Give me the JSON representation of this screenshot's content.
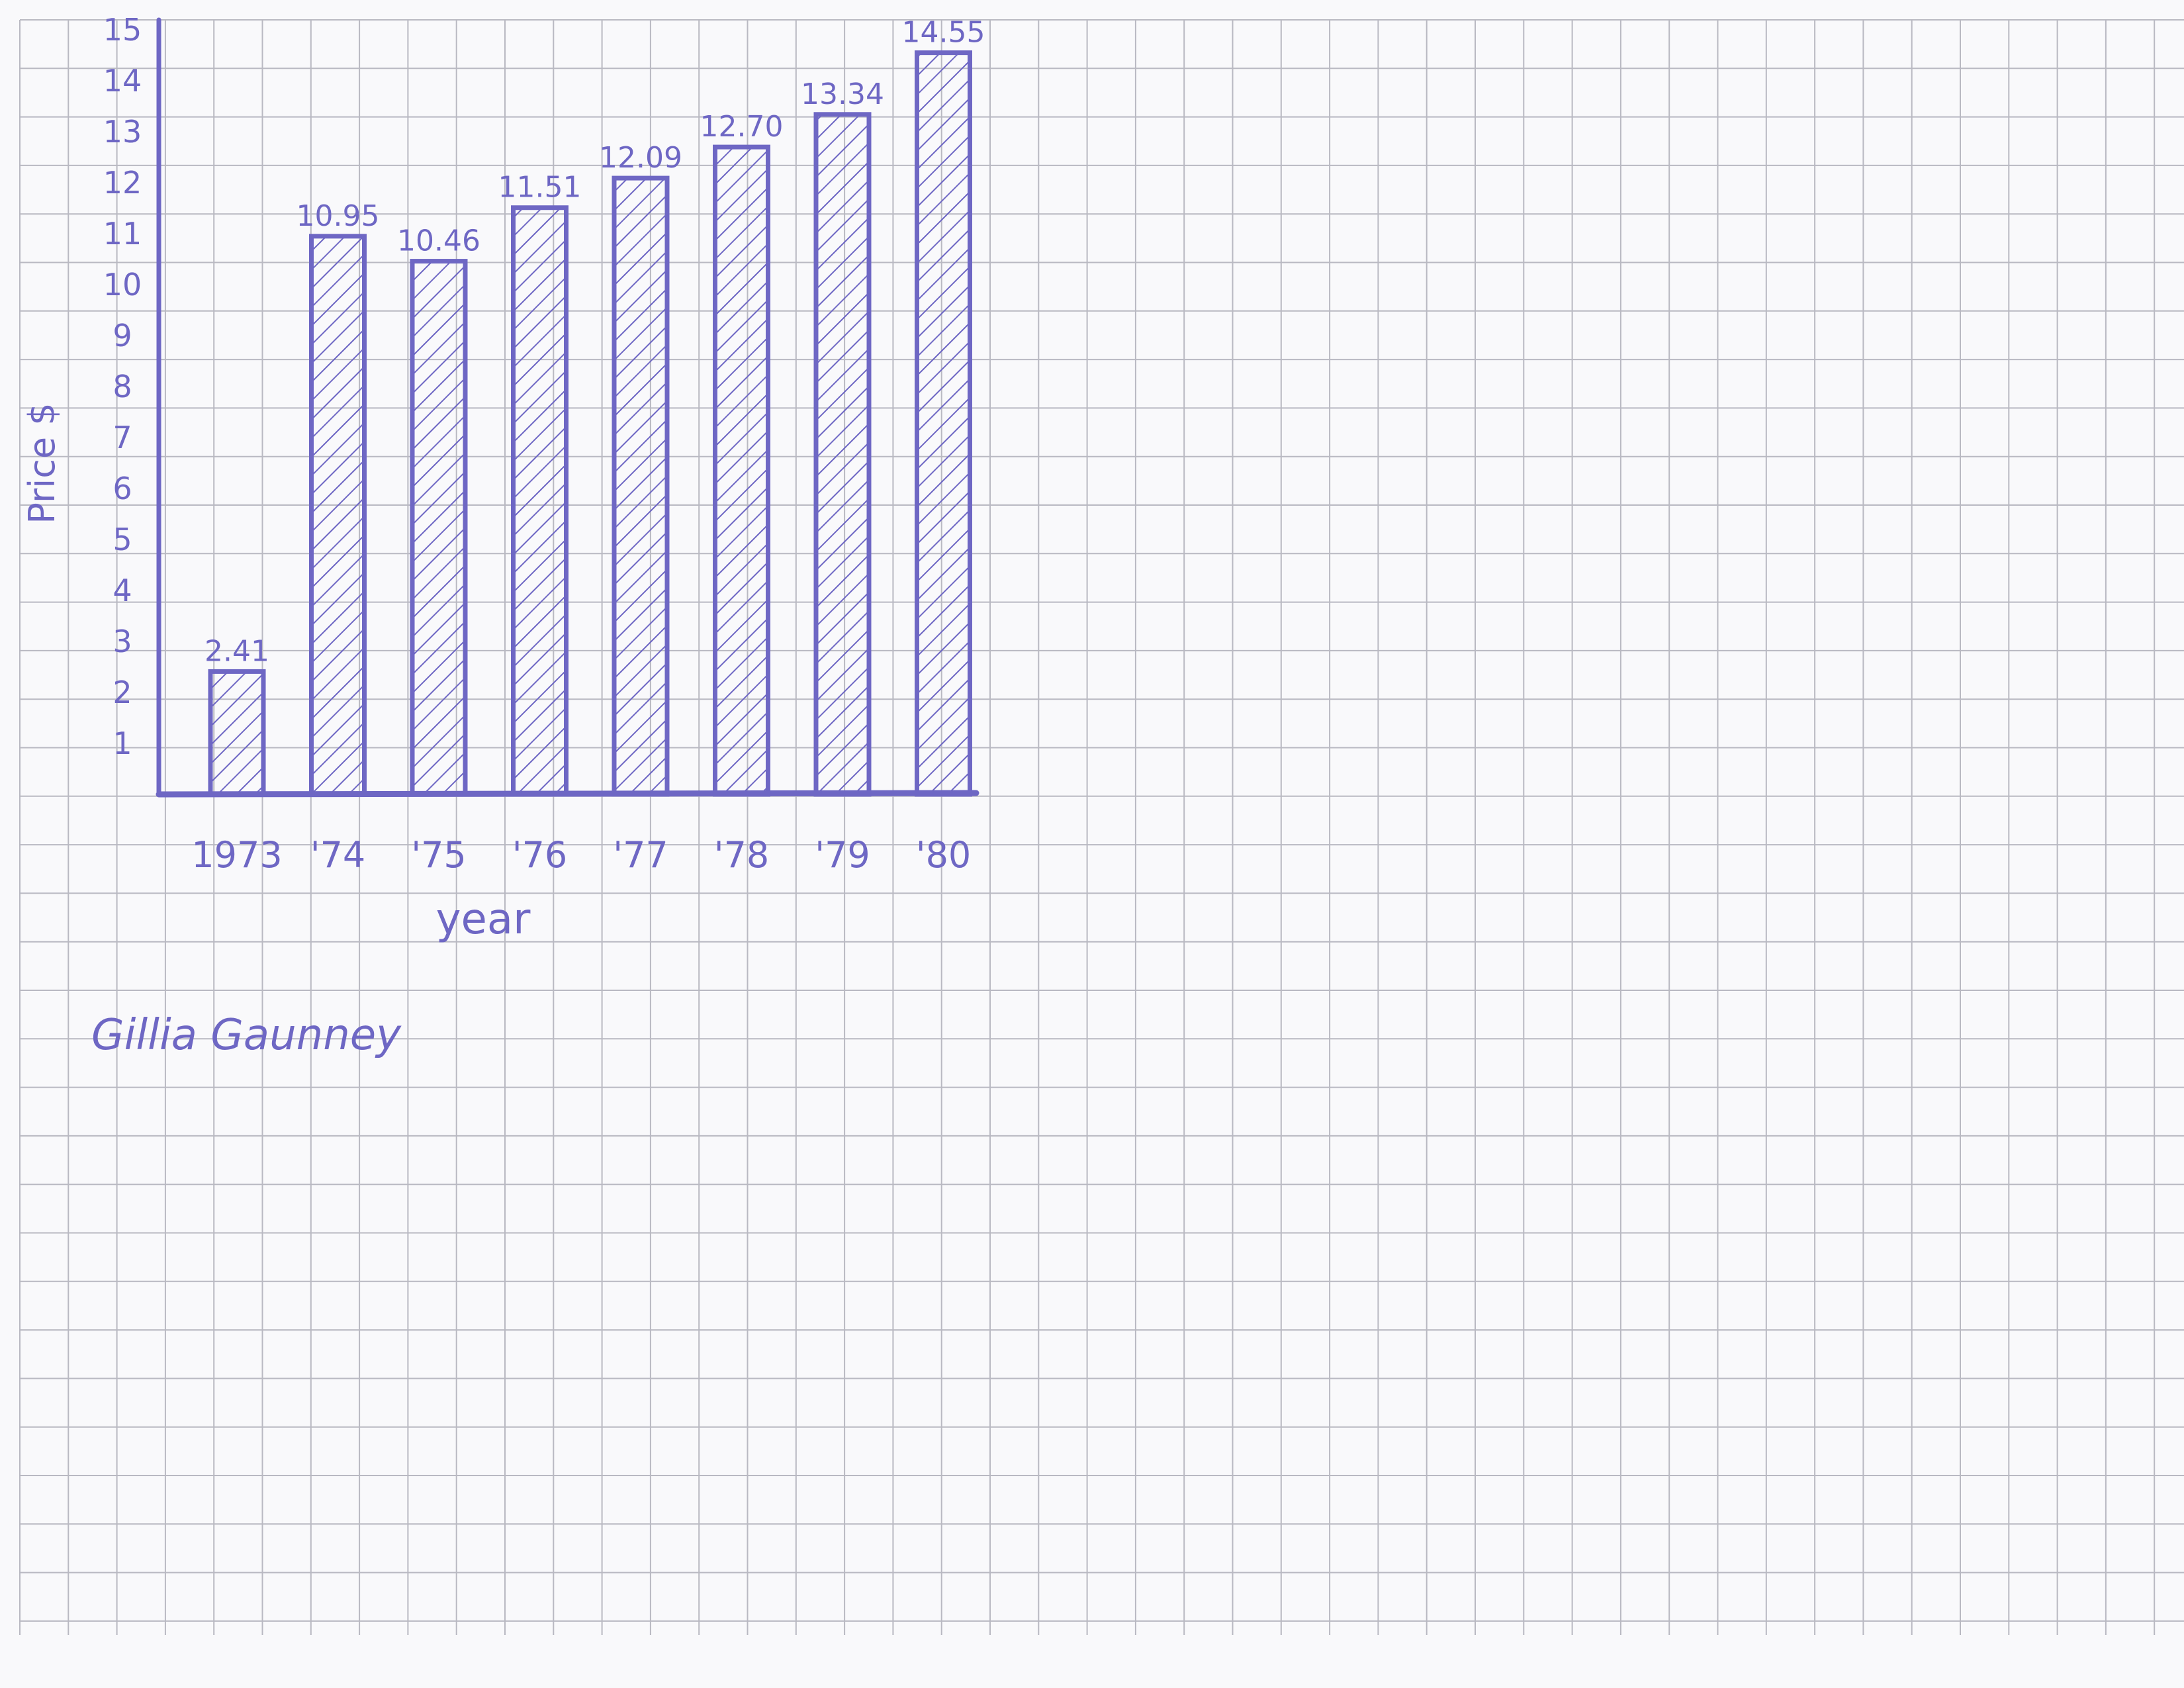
{
  "colors": {
    "ink": "#6e67c4",
    "paper": "#f9f9fb",
    "grid": "#b9b9c2"
  },
  "chart_data": {
    "type": "bar",
    "title": "",
    "xlabel": "year",
    "ylabel": "Price $",
    "categories": [
      "1973",
      "'74",
      "'75",
      "'76",
      "'77",
      "'78",
      "'79",
      "'80"
    ],
    "values": [
      2.41,
      10.95,
      10.46,
      11.51,
      12.09,
      12.7,
      13.34,
      14.55
    ],
    "value_labels": [
      "2.41",
      "10.95",
      "10.46",
      "11.51",
      "12.09",
      "12.70",
      "13.34",
      "14.55"
    ],
    "yticks": [
      "1",
      "2",
      "3",
      "4",
      "5",
      "6",
      "7",
      "8",
      "9",
      "10",
      "11",
      "12",
      "13",
      "14",
      "15"
    ],
    "ylim": [
      0,
      15
    ],
    "grid": true,
    "legend": "none",
    "bar_fill": "diagonal hatch"
  },
  "signature": "Gillia Gaunney"
}
